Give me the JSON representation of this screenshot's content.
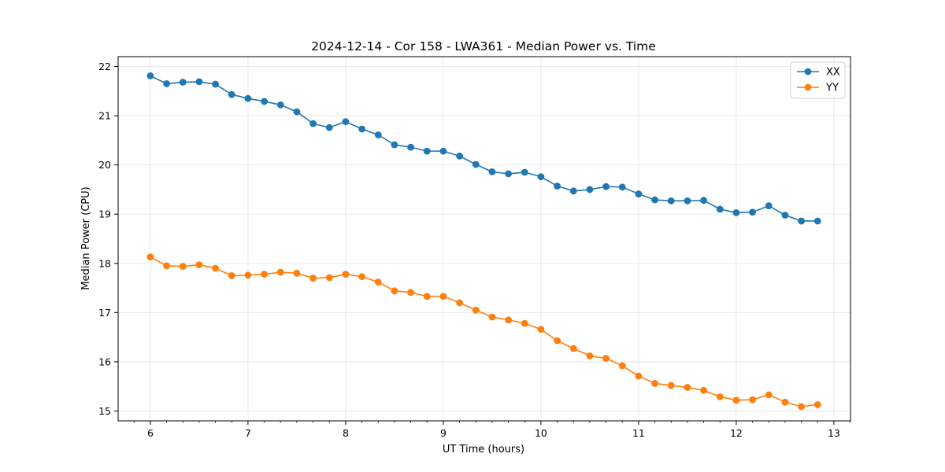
{
  "chart_data": {
    "type": "line",
    "title": "2024-12-14 - Cor 158 - LWA361 - Median Power vs. Time",
    "xlabel": "UT Time (hours)",
    "ylabel": "Median Power (CPU)",
    "xlim": [
      5.67,
      13.17
    ],
    "ylim": [
      14.8,
      22.2
    ],
    "xticks": [
      6,
      7,
      8,
      9,
      10,
      11,
      12,
      13
    ],
    "yticks": [
      15,
      16,
      17,
      18,
      19,
      20,
      21,
      22
    ],
    "grid": true,
    "legend_position": "top-right",
    "x": [
      6.0,
      6.1667,
      6.3333,
      6.5,
      6.6667,
      6.8333,
      7.0,
      7.1667,
      7.3333,
      7.5,
      7.6667,
      7.8333,
      8.0,
      8.1667,
      8.3333,
      8.5,
      8.6667,
      8.8333,
      9.0,
      9.1667,
      9.3333,
      9.5,
      9.6667,
      9.8333,
      10.0,
      10.1667,
      10.3333,
      10.5,
      10.6667,
      10.8333,
      11.0,
      11.1667,
      11.3333,
      11.5,
      11.6667,
      11.8333,
      12.0,
      12.1667,
      12.3333,
      12.5,
      12.6667,
      12.8333
    ],
    "series": [
      {
        "name": "XX",
        "color": "#1f77b4",
        "values": [
          21.81,
          21.65,
          21.68,
          21.69,
          21.64,
          21.43,
          21.35,
          21.29,
          21.22,
          21.08,
          20.84,
          20.76,
          20.88,
          20.73,
          20.61,
          20.41,
          20.36,
          20.28,
          20.28,
          20.18,
          20.01,
          19.86,
          19.82,
          19.85,
          19.76,
          19.57,
          19.47,
          19.5,
          19.56,
          19.55,
          19.41,
          19.29,
          19.27,
          19.27,
          19.28,
          19.1,
          19.03,
          19.04,
          19.17,
          18.98,
          18.86,
          18.86
        ]
      },
      {
        "name": "YY",
        "color": "#ff7f0e",
        "values": [
          18.13,
          17.95,
          17.94,
          17.97,
          17.9,
          17.75,
          17.76,
          17.78,
          17.82,
          17.8,
          17.7,
          17.71,
          17.78,
          17.73,
          17.62,
          17.44,
          17.41,
          17.33,
          17.33,
          17.2,
          17.05,
          16.91,
          16.85,
          16.78,
          16.66,
          16.43,
          16.27,
          16.12,
          16.07,
          15.92,
          15.71,
          15.56,
          15.52,
          15.48,
          15.42,
          15.29,
          15.22,
          15.23,
          15.33,
          15.18,
          15.09,
          15.13
        ]
      }
    ]
  }
}
